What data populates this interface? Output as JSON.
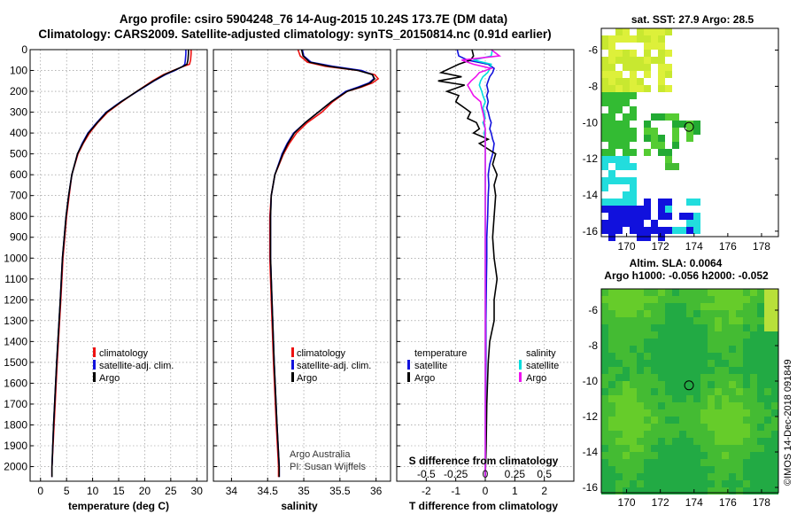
{
  "header": {
    "line1": "Argo profile: csiro 5904248_76 14-Aug-2015 10.24S 173.7E (DM data)",
    "line2": "Climatology: CARS2009. Satellite-adjusted climatology: synTS_20150814.nc (0.91d earlier)"
  },
  "credit": {
    "line1": "Argo Australia",
    "line2": "PI: Susan Wijffels"
  },
  "watermark": "©IMOS 14-Dec-2018 091849",
  "colors": {
    "climatology": "#ee1111",
    "satellite": "#1111dd",
    "argo": "#000000",
    "salinity": "#00dddd",
    "argo_s": "#ee11ee"
  },
  "chart_data": [
    {
      "type": "line",
      "title": "",
      "xlabel": "temperature (deg C)",
      "ylabel": "",
      "xlim": [
        -2,
        32
      ],
      "ylim": [
        2070,
        0
      ],
      "xticks": [
        "0",
        "5",
        "10",
        "15",
        "20",
        "25",
        "30"
      ],
      "yticks": [
        "0",
        "100",
        "200",
        "300",
        "400",
        "500",
        "600",
        "700",
        "800",
        "900",
        "1000",
        "1100",
        "1200",
        "1300",
        "1400",
        "1500",
        "1600",
        "1700",
        "1800",
        "1900",
        "2000"
      ],
      "legend": [
        "climatology",
        "satellite-adj. clim.",
        "Argo"
      ],
      "depth": [
        0,
        20,
        50,
        70,
        80,
        100,
        120,
        150,
        200,
        250,
        300,
        350,
        400,
        450,
        500,
        600,
        700,
        800,
        1000,
        1200,
        1500,
        1800,
        2000,
        2050
      ],
      "series": [
        {
          "name": "climatology",
          "color": "#ee1111",
          "values": [
            28.9,
            28.9,
            28.8,
            28.6,
            27.5,
            25.5,
            23.6,
            21.5,
            18.5,
            15.6,
            12.9,
            11.0,
            9.4,
            8.2,
            7.2,
            6.0,
            5.5,
            5.0,
            4.3,
            3.9,
            3.2,
            2.6,
            2.2,
            2.2
          ]
        },
        {
          "name": "satellite-adj. clim.",
          "color": "#1111dd",
          "values": [
            27.9,
            27.9,
            27.8,
            27.7,
            27.3,
            25.8,
            24.0,
            21.8,
            18.6,
            15.4,
            12.6,
            10.8,
            9.1,
            8.0,
            7.1,
            6.0,
            5.4,
            4.9,
            4.2,
            3.8,
            3.1,
            2.5,
            2.2,
            2.2
          ]
        },
        {
          "name": "Argo",
          "color": "#000000",
          "values": [
            28.4,
            28.4,
            28.3,
            28.1,
            27.4,
            25.6,
            23.8,
            21.7,
            18.5,
            15.5,
            12.7,
            10.9,
            9.2,
            8.1,
            7.1,
            6.0,
            5.4,
            4.9,
            4.2,
            3.8,
            3.1,
            2.5,
            2.2,
            2.2
          ]
        }
      ]
    },
    {
      "type": "line",
      "title": "",
      "xlabel": "salinity",
      "xlim": [
        33.75,
        36.2
      ],
      "ylim": [
        2070,
        0
      ],
      "xticks": [
        "34",
        "34.5",
        "35",
        "35.5",
        "36"
      ],
      "legend": [
        "climatology",
        "satellite-adj. clim.",
        "Argo"
      ],
      "depth": [
        0,
        30,
        60,
        80,
        100,
        120,
        140,
        160,
        180,
        200,
        250,
        300,
        350,
        400,
        450,
        500,
        600,
        700,
        800,
        1000,
        1200,
        1500,
        1800,
        2000,
        2050
      ],
      "series": [
        {
          "name": "climatology",
          "color": "#ee1111",
          "values": [
            34.92,
            34.95,
            35.05,
            35.3,
            35.75,
            35.98,
            36.03,
            35.95,
            35.8,
            35.6,
            35.4,
            35.25,
            35.05,
            34.9,
            34.8,
            34.72,
            34.6,
            34.55,
            34.53,
            34.53,
            34.55,
            34.58,
            34.62,
            34.65,
            34.65
          ]
        },
        {
          "name": "satellite-adj. clim.",
          "color": "#1111dd",
          "values": [
            34.98,
            35.0,
            35.1,
            35.4,
            35.8,
            35.95,
            35.97,
            35.9,
            35.75,
            35.58,
            35.38,
            35.2,
            35.02,
            34.86,
            34.77,
            34.7,
            34.6,
            34.55,
            34.54,
            34.54,
            34.56,
            34.59,
            34.63,
            34.66,
            34.66
          ]
        },
        {
          "name": "Argo",
          "color": "#000000",
          "values": [
            34.97,
            34.99,
            35.08,
            35.35,
            35.75,
            35.95,
            35.98,
            35.92,
            35.78,
            35.6,
            35.38,
            35.2,
            35.02,
            34.87,
            34.78,
            34.71,
            34.6,
            34.55,
            34.54,
            34.54,
            34.56,
            34.59,
            34.63,
            34.66,
            34.66
          ]
        }
      ]
    },
    {
      "type": "line",
      "title": "",
      "xlabel": "T difference from climatology",
      "xlabel_top": "S difference from climatology",
      "xlim": [
        -3,
        3
      ],
      "ylim": [
        2070,
        0
      ],
      "xticks": [
        "-2",
        "-1",
        "0",
        "1",
        "2"
      ],
      "xticks_top": [
        "-0.5",
        "-0.25",
        "0",
        "0.25",
        "0.5"
      ],
      "legend_left_title": "temperature",
      "legend_right_title": "salinity",
      "legend_left": [
        "satellite",
        "Argo"
      ],
      "legend_right": [
        "satellite",
        "Argo"
      ],
      "depth": [
        0,
        30,
        50,
        70,
        90,
        110,
        130,
        150,
        170,
        200,
        220,
        250,
        280,
        300,
        330,
        350,
        380,
        400,
        430,
        450,
        500,
        550,
        600,
        650,
        700,
        800,
        900,
        1000,
        1100,
        1200,
        1300,
        1400,
        1500,
        1700,
        1900,
        2050
      ],
      "series": [
        {
          "name": "T satellite",
          "color": "#1111dd",
          "values": [
            -0.95,
            -0.9,
            -0.6,
            0.1,
            0.3,
            0.25,
            0.15,
            0.1,
            0.05,
            0.1,
            0.05,
            0.1,
            0.05,
            0.1,
            0.15,
            0.2,
            0.15,
            0.2,
            0.25,
            0.3,
            0.25,
            0.15,
            0.1,
            0.12,
            0.1,
            0.08,
            0.05,
            0.05,
            0.04,
            0.03,
            0.02,
            0.02,
            0.02,
            0.01,
            0.01,
            0.0
          ]
        },
        {
          "name": "T Argo",
          "color": "#000000",
          "values": [
            -0.45,
            -0.4,
            -0.5,
            -0.9,
            -1.2,
            -1.5,
            -0.8,
            -1.6,
            -0.7,
            -1.3,
            -0.9,
            -1.0,
            -0.7,
            -0.5,
            -0.6,
            -0.3,
            -0.2,
            -0.4,
            0.1,
            -0.2,
            0.35,
            0.25,
            0.4,
            0.3,
            0.35,
            0.3,
            0.25,
            0.3,
            0.4,
            0.3,
            0.3,
            0.15,
            0.1,
            0.05,
            0.03,
            0.0
          ]
        },
        {
          "name": "S satellite",
          "color": "#00dddd",
          "values": [
            0.06,
            0.05,
            -0.1,
            0.05,
            0.04,
            0.02,
            -0.02,
            -0.04,
            -0.05,
            -0.03,
            -0.02,
            0.0,
            -0.02,
            -0.01,
            0.0,
            -0.02,
            0.0,
            -0.01,
            0.0,
            0.0,
            0.0,
            0.0,
            0.0,
            0.0,
            0.0,
            0.0,
            0.0,
            0.0,
            0.0,
            0.0,
            0.0,
            0.0,
            0.0,
            0.0,
            0.0,
            0.0
          ]
        },
        {
          "name": "S Argo",
          "color": "#ee11ee",
          "values": [
            0.05,
            0.12,
            -0.2,
            -0.1,
            0.05,
            -0.05,
            -0.08,
            -0.12,
            -0.15,
            -0.12,
            -0.1,
            -0.04,
            -0.03,
            -0.02,
            -0.01,
            -0.01,
            0.0,
            0.0,
            0.0,
            0.0,
            0.0,
            0.0,
            0.0,
            0.0,
            0.0,
            0.0,
            0.0,
            0.0,
            0.0,
            0.0,
            0.0,
            0.0,
            0.0,
            0.0,
            0.0,
            0.0
          ]
        }
      ]
    },
    {
      "type": "heatmap",
      "title": "sat. SST: 27.9 Argo: 28.5",
      "xlim": [
        168.5,
        179
      ],
      "ylim": [
        -16.3,
        -4.8
      ],
      "xticks": [
        "170",
        "172",
        "174",
        "176",
        "178"
      ],
      "yticks": [
        "-6",
        "-8",
        "-10",
        "-12",
        "-14",
        "-16"
      ],
      "marker": {
        "lon": 173.7,
        "lat": -10.24
      }
    },
    {
      "type": "heatmap",
      "title": "Altim. SLA: 0.0064",
      "subtitle": "Argo h1000: -0.056 h2000: -0.052",
      "xlim": [
        168.5,
        179
      ],
      "ylim": [
        -16.3,
        -4.8
      ],
      "xticks": [
        "170",
        "172",
        "174",
        "176",
        "178"
      ],
      "yticks": [
        "-6",
        "-8",
        "-10",
        "-12",
        "-14",
        "-16"
      ],
      "marker": {
        "lon": 173.7,
        "lat": -10.24
      }
    }
  ]
}
